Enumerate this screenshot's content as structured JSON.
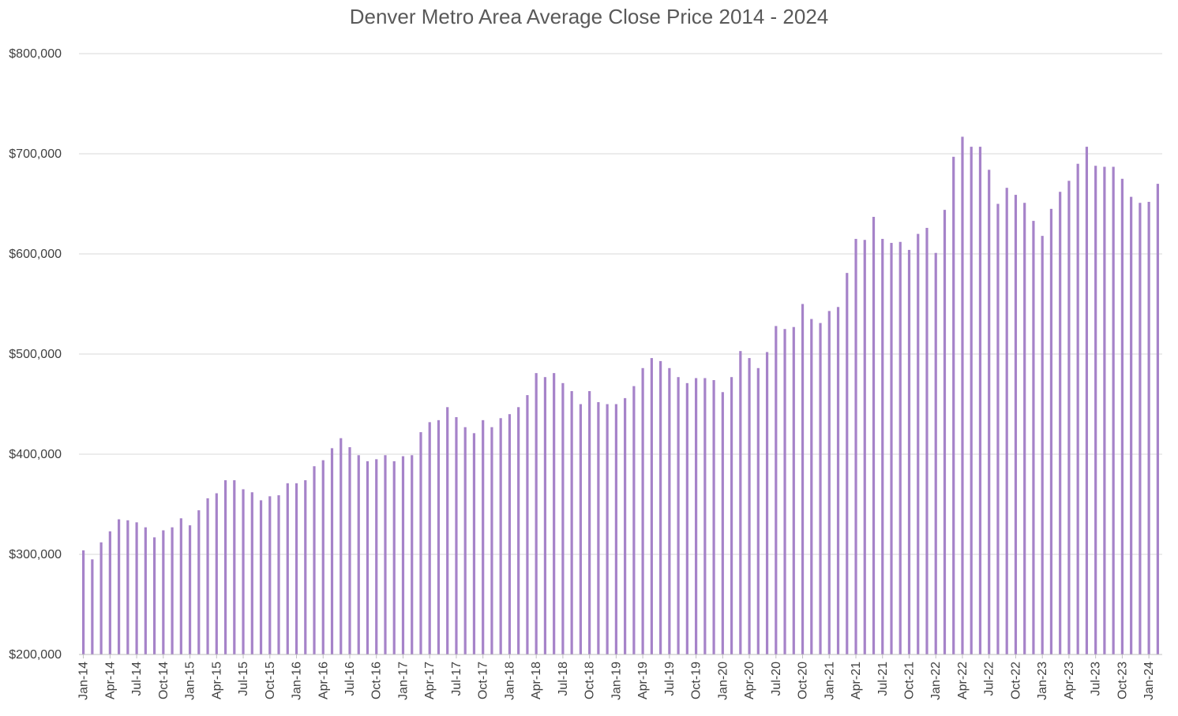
{
  "chart_data": {
    "type": "bar",
    "title": "Denver Metro Area Average Close Price 2014 - 2024",
    "xlabel": "",
    "ylabel": "",
    "ylim": [
      200000,
      800000
    ],
    "yticks": [
      200000,
      300000,
      400000,
      500000,
      600000,
      700000,
      800000
    ],
    "ytick_labels": [
      "$200,000",
      "$300,000",
      "$400,000",
      "$500,000",
      "$600,000",
      "$700,000",
      "$800,000"
    ],
    "grid": true,
    "bar_color": "#a683c9",
    "x_tick_labels": [
      "Jan-14",
      "Apr-14",
      "Jul-14",
      "Oct-14",
      "Jan-15",
      "Apr-15",
      "Jul-15",
      "Oct-15",
      "Jan-16",
      "Apr-16",
      "Jul-16",
      "Oct-16",
      "Jan-17",
      "Apr-17",
      "Jul-17",
      "Oct-17",
      "Jan-18",
      "Apr-18",
      "Jul-18",
      "Oct-18",
      "Jan-19",
      "Apr-19",
      "Jul-19",
      "Oct-19",
      "Jan-20",
      "Apr-20",
      "Jul-20",
      "Oct-20",
      "Jan-21",
      "Apr-21",
      "Jul-21",
      "Oct-21",
      "Jan-22",
      "Apr-22",
      "Jul-22",
      "Oct-22",
      "Jan-23",
      "Apr-23",
      "Jul-23",
      "Oct-23",
      "Jan-24"
    ],
    "categories": [
      "Jan-14",
      "Feb-14",
      "Mar-14",
      "Apr-14",
      "May-14",
      "Jun-14",
      "Jul-14",
      "Aug-14",
      "Sep-14",
      "Oct-14",
      "Nov-14",
      "Dec-14",
      "Jan-15",
      "Feb-15",
      "Mar-15",
      "Apr-15",
      "May-15",
      "Jun-15",
      "Jul-15",
      "Aug-15",
      "Sep-15",
      "Oct-15",
      "Nov-15",
      "Dec-15",
      "Jan-16",
      "Feb-16",
      "Mar-16",
      "Apr-16",
      "May-16",
      "Jun-16",
      "Jul-16",
      "Aug-16",
      "Sep-16",
      "Oct-16",
      "Nov-16",
      "Dec-16",
      "Jan-17",
      "Feb-17",
      "Mar-17",
      "Apr-17",
      "May-17",
      "Jun-17",
      "Jul-17",
      "Aug-17",
      "Sep-17",
      "Oct-17",
      "Nov-17",
      "Dec-17",
      "Jan-18",
      "Feb-18",
      "Mar-18",
      "Apr-18",
      "May-18",
      "Jun-18",
      "Jul-18",
      "Aug-18",
      "Sep-18",
      "Oct-18",
      "Nov-18",
      "Dec-18",
      "Jan-19",
      "Feb-19",
      "Mar-19",
      "Apr-19",
      "May-19",
      "Jun-19",
      "Jul-19",
      "Aug-19",
      "Sep-19",
      "Oct-19",
      "Nov-19",
      "Dec-19",
      "Jan-20",
      "Feb-20",
      "Mar-20",
      "Apr-20",
      "May-20",
      "Jun-20",
      "Jul-20",
      "Aug-20",
      "Sep-20",
      "Oct-20",
      "Nov-20",
      "Dec-20",
      "Jan-21",
      "Feb-21",
      "Mar-21",
      "Apr-21",
      "May-21",
      "Jun-21",
      "Jul-21",
      "Aug-21",
      "Sep-21",
      "Oct-21",
      "Nov-21",
      "Dec-21",
      "Jan-22",
      "Feb-22",
      "Mar-22",
      "Apr-22",
      "May-22",
      "Jun-22",
      "Jul-22",
      "Aug-22",
      "Sep-22",
      "Oct-22",
      "Nov-22",
      "Dec-22",
      "Jan-23",
      "Feb-23",
      "Mar-23",
      "Apr-23",
      "May-23",
      "Jun-23",
      "Jul-23",
      "Aug-23",
      "Sep-23",
      "Oct-23",
      "Nov-23",
      "Dec-23",
      "Jan-24",
      "Feb-24"
    ],
    "values": [
      304000,
      295000,
      312000,
      323000,
      335000,
      334000,
      332000,
      327000,
      317000,
      324000,
      327000,
      336000,
      329000,
      344000,
      356000,
      361000,
      374000,
      374000,
      365000,
      362000,
      354000,
      358000,
      359000,
      371000,
      371000,
      374000,
      388000,
      394000,
      406000,
      416000,
      407000,
      399000,
      393000,
      395000,
      399000,
      393000,
      398000,
      399000,
      422000,
      432000,
      434000,
      447000,
      437000,
      427000,
      421000,
      434000,
      427000,
      436000,
      440000,
      447000,
      459000,
      481000,
      477000,
      481000,
      471000,
      463000,
      450000,
      463000,
      452000,
      450000,
      450000,
      456000,
      468000,
      486000,
      496000,
      493000,
      486000,
      477000,
      471000,
      476000,
      476000,
      474000,
      462000,
      477000,
      503000,
      496000,
      486000,
      502000,
      528000,
      525000,
      527000,
      550000,
      535000,
      531000,
      543000,
      547000,
      581000,
      615000,
      614000,
      637000,
      615000,
      611000,
      612000,
      604000,
      620000,
      626000,
      601000,
      644000,
      697000,
      717000,
      707000,
      707000,
      684000,
      650000,
      666000,
      659000,
      651000,
      633000,
      618000,
      645000,
      662000,
      673000,
      690000,
      707000,
      688000,
      687000,
      687000,
      675000,
      657000,
      651000,
      652000,
      670000
    ]
  }
}
